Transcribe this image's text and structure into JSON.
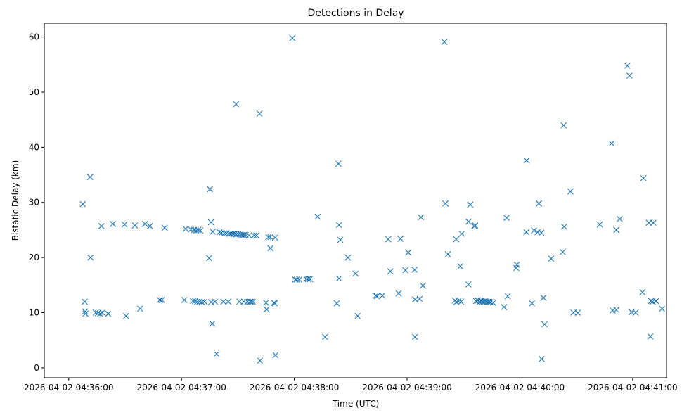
{
  "chart_data": {
    "type": "scatter",
    "title": "Detections in Delay",
    "xlabel": "Time (UTC)",
    "ylabel": "Bistatic Delay (km)",
    "x_unit": "seconds after 2026-04-02 04:36:00",
    "xlim": [
      -13,
      318
    ],
    "ylim": [
      -1.8,
      62.5
    ],
    "grid": false,
    "marker": "x",
    "marker_color": "#1f77b4",
    "xticks": [
      {
        "value": 0,
        "label": "2026-04-02 04:36:00"
      },
      {
        "value": 60,
        "label": "2026-04-02 04:37:00"
      },
      {
        "value": 120,
        "label": "2026-04-02 04:38:00"
      },
      {
        "value": 180,
        "label": "2026-04-02 04:39:00"
      },
      {
        "value": 240,
        "label": "2026-04-02 04:40:00"
      },
      {
        "value": 300,
        "label": "2026-04-02 04:41:00"
      }
    ],
    "yticks": [
      {
        "value": 0,
        "label": "0"
      },
      {
        "value": 10,
        "label": "10"
      },
      {
        "value": 20,
        "label": "20"
      },
      {
        "value": 30,
        "label": "30"
      },
      {
        "value": 40,
        "label": "40"
      },
      {
        "value": 50,
        "label": "50"
      },
      {
        "value": 60,
        "label": "60"
      }
    ],
    "series": [
      {
        "name": "detections",
        "points": [
          [
            7.5,
            29.7
          ],
          [
            8.5,
            12.0
          ],
          [
            8.7,
            10.2
          ],
          [
            8.9,
            9.8
          ],
          [
            11.4,
            34.6
          ],
          [
            11.6,
            20.0
          ],
          [
            14.4,
            10.0
          ],
          [
            15.5,
            9.9
          ],
          [
            16.7,
            9.8
          ],
          [
            17.4,
            25.7
          ],
          [
            17.9,
            10.0
          ],
          [
            21.0,
            9.8
          ],
          [
            23.5,
            26.1
          ],
          [
            29.7,
            26.0
          ],
          [
            30.5,
            9.4
          ],
          [
            35.2,
            25.8
          ],
          [
            38.0,
            10.7
          ],
          [
            40.6,
            26.1
          ],
          [
            43.2,
            25.7
          ],
          [
            48.5,
            12.3
          ],
          [
            49.5,
            12.3
          ],
          [
            51.0,
            25.4
          ],
          [
            61.5,
            12.3
          ],
          [
            62.2,
            25.2
          ],
          [
            65.0,
            25.1
          ],
          [
            66.1,
            12.1
          ],
          [
            66.7,
            25.0
          ],
          [
            67.2,
            12.1
          ],
          [
            67.8,
            24.9
          ],
          [
            68.3,
            12.0
          ],
          [
            68.9,
            25.0
          ],
          [
            69.5,
            12.0
          ],
          [
            70.0,
            24.9
          ],
          [
            70.8,
            11.9
          ],
          [
            72.2,
            12.0
          ],
          [
            74.7,
            19.9
          ],
          [
            75.1,
            32.4
          ],
          [
            75.7,
            11.9
          ],
          [
            75.7,
            26.4
          ],
          [
            76.4,
            8.0
          ],
          [
            76.6,
            24.7
          ],
          [
            77.8,
            12.0
          ],
          [
            78.7,
            2.5
          ],
          [
            80.2,
            24.6
          ],
          [
            81.3,
            24.5
          ],
          [
            82.3,
            12.0
          ],
          [
            82.8,
            24.4
          ],
          [
            83.9,
            24.4
          ],
          [
            84.9,
            12.0
          ],
          [
            85.3,
            24.3
          ],
          [
            86.2,
            24.3
          ],
          [
            87.4,
            24.3
          ],
          [
            88.3,
            24.3
          ],
          [
            89.0,
            47.8
          ],
          [
            89.2,
            24.2
          ],
          [
            90.2,
            24.2
          ],
          [
            90.8,
            12.0
          ],
          [
            91.2,
            24.2
          ],
          [
            92.2,
            24.1
          ],
          [
            93.1,
            24.1
          ],
          [
            93.2,
            12.0
          ],
          [
            94.1,
            24.1
          ],
          [
            95.0,
            12.0
          ],
          [
            95.9,
            24.0
          ],
          [
            96.5,
            12.0
          ],
          [
            97.1,
            12.0
          ],
          [
            97.9,
            12.0
          ],
          [
            98.6,
            24.0
          ],
          [
            99.8,
            24.0
          ],
          [
            101.5,
            46.1
          ],
          [
            101.7,
            1.3
          ],
          [
            105.0,
            11.8
          ],
          [
            105.3,
            10.6
          ],
          [
            106.2,
            23.7
          ],
          [
            107.3,
            23.7
          ],
          [
            107.3,
            21.7
          ],
          [
            109.2,
            11.8
          ],
          [
            109.6,
            11.7
          ],
          [
            109.8,
            23.6
          ],
          [
            110.0,
            2.3
          ],
          [
            119.0,
            59.8
          ],
          [
            120.5,
            16.0
          ],
          [
            121.3,
            16.0
          ],
          [
            122.6,
            16.0
          ],
          [
            126.5,
            16.1
          ],
          [
            127.4,
            16.1
          ],
          [
            128.3,
            16.1
          ],
          [
            132.4,
            27.4
          ],
          [
            136.4,
            5.6
          ],
          [
            142.6,
            11.7
          ],
          [
            143.5,
            37.0
          ],
          [
            143.8,
            25.9
          ],
          [
            143.8,
            16.2
          ],
          [
            144.5,
            23.2
          ],
          [
            148.5,
            20.0
          ],
          [
            152.6,
            17.1
          ],
          [
            153.7,
            9.4
          ],
          [
            163.3,
            13.1
          ],
          [
            164.0,
            13.0
          ],
          [
            166.8,
            13.1
          ],
          [
            170.0,
            23.3
          ],
          [
            171.1,
            17.5
          ],
          [
            175.5,
            13.5
          ],
          [
            176.5,
            23.4
          ],
          [
            179.1,
            17.7
          ],
          [
            180.6,
            20.9
          ],
          [
            184.0,
            17.8
          ],
          [
            184.2,
            5.6
          ],
          [
            184.3,
            12.4
          ],
          [
            186.7,
            12.5
          ],
          [
            187.3,
            27.3
          ],
          [
            188.4,
            14.9
          ],
          [
            199.8,
            59.1
          ],
          [
            200.4,
            29.8
          ],
          [
            201.7,
            20.6
          ],
          [
            205.5,
            12.2
          ],
          [
            206.1,
            23.3
          ],
          [
            206.2,
            11.9
          ],
          [
            207.3,
            12.1
          ],
          [
            208.3,
            18.4
          ],
          [
            208.7,
            12.0
          ],
          [
            209.1,
            24.3
          ],
          [
            212.6,
            15.1
          ],
          [
            212.7,
            26.5
          ],
          [
            213.6,
            29.6
          ],
          [
            215.8,
            25.7
          ],
          [
            216.3,
            25.8
          ],
          [
            216.7,
            12.1
          ],
          [
            217.6,
            12.2
          ],
          [
            218.7,
            12.0
          ],
          [
            219.4,
            12.1
          ],
          [
            220.0,
            12.0
          ],
          [
            220.8,
            12.0
          ],
          [
            221.5,
            12.1
          ],
          [
            222.2,
            12.0
          ],
          [
            223.0,
            12.0
          ],
          [
            223.7,
            12.0
          ],
          [
            224.3,
            11.9
          ],
          [
            225.8,
            11.8
          ],
          [
            231.6,
            11.0
          ],
          [
            232.9,
            27.2
          ],
          [
            233.5,
            13.0
          ],
          [
            238.1,
            18.1
          ],
          [
            238.4,
            18.7
          ],
          [
            243.5,
            24.6
          ],
          [
            243.6,
            37.6
          ],
          [
            246.4,
            11.7
          ],
          [
            247.5,
            24.9
          ],
          [
            249.4,
            24.6
          ],
          [
            250.1,
            29.8
          ],
          [
            251.4,
            24.5
          ],
          [
            251.6,
            1.6
          ],
          [
            252.5,
            12.7
          ],
          [
            253.1,
            7.9
          ],
          [
            256.6,
            19.8
          ],
          [
            262.8,
            21.0
          ],
          [
            263.3,
            44.0
          ],
          [
            263.6,
            25.6
          ],
          [
            266.9,
            32.0
          ],
          [
            268.5,
            10.0
          ],
          [
            270.8,
            10.0
          ],
          [
            282.5,
            26.0
          ],
          [
            288.8,
            40.7
          ],
          [
            289.3,
            10.4
          ],
          [
            291.3,
            10.5
          ],
          [
            291.3,
            25.0
          ],
          [
            293.1,
            27.0
          ],
          [
            297.2,
            54.8
          ],
          [
            298.3,
            53.0
          ],
          [
            299.4,
            10.1
          ],
          [
            301.6,
            10.0
          ],
          [
            305.2,
            13.7
          ],
          [
            305.7,
            34.4
          ],
          [
            308.6,
            26.3
          ],
          [
            309.4,
            5.7
          ],
          [
            309.8,
            12.1
          ],
          [
            310.6,
            12.0
          ],
          [
            311.0,
            26.3
          ],
          [
            312.4,
            12.1
          ],
          [
            315.6,
            10.7
          ]
        ]
      }
    ]
  }
}
